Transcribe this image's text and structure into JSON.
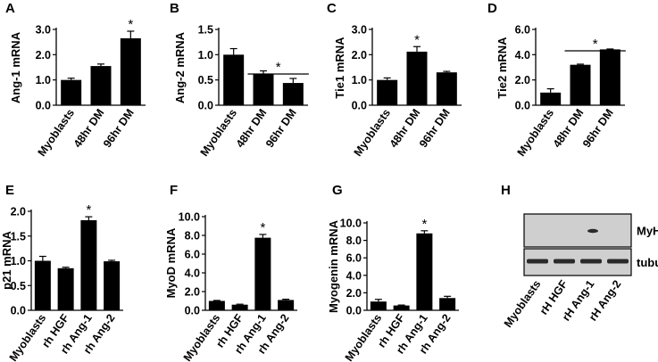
{
  "chart_data": [
    {
      "panel": "A",
      "type": "bar",
      "ylabel": "Ang-1 mRNA",
      "categories": [
        "Myoblasts",
        "48hr DM",
        "96hr DM"
      ],
      "values": [
        1.0,
        1.55,
        2.65
      ],
      "errors": [
        0.07,
        0.08,
        0.28
      ],
      "ylim": [
        0,
        3.0
      ],
      "yticks": [
        0,
        1.0,
        2.0,
        3.0
      ],
      "ytick_labels": [
        "0.0",
        "1.0",
        "2.0",
        "3.0"
      ],
      "significance": [
        {
          "symbol": "*",
          "over": [
            2
          ]
        }
      ]
    },
    {
      "panel": "B",
      "type": "bar",
      "ylabel": "Ang-2 mRNA",
      "categories": [
        "Myoblasts",
        "48hr DM",
        "96hr DM"
      ],
      "values": [
        1.0,
        0.62,
        0.44
      ],
      "errors": [
        0.12,
        0.06,
        0.09
      ],
      "ylim": [
        0,
        1.5
      ],
      "yticks": [
        0,
        0.5,
        1.0,
        1.5
      ],
      "ytick_labels": [
        "0.0",
        "0.5",
        "1.0",
        "1.5"
      ],
      "significance": [
        {
          "symbol": "*",
          "over": [
            1,
            2
          ]
        }
      ]
    },
    {
      "panel": "C",
      "type": "bar",
      "ylabel": "Tie1 mRNA",
      "categories": [
        "Myoblasts",
        "48hr DM",
        "96hr DM"
      ],
      "values": [
        1.0,
        2.12,
        1.3
      ],
      "errors": [
        0.08,
        0.2,
        0.04
      ],
      "ylim": [
        0,
        3.0
      ],
      "yticks": [
        0,
        1.0,
        2.0,
        3.0
      ],
      "ytick_labels": [
        "0.0",
        "1.0",
        "2.0",
        "3.0"
      ],
      "significance": [
        {
          "symbol": "*",
          "over": [
            1
          ]
        }
      ]
    },
    {
      "panel": "D",
      "type": "bar",
      "ylabel": "Tie2 mRNA",
      "categories": [
        "Myoblasts",
        "48hr DM",
        "96hr DM"
      ],
      "values": [
        1.0,
        3.2,
        4.42
      ],
      "errors": [
        0.3,
        0.05,
        0.03
      ],
      "ylim": [
        0,
        6.0
      ],
      "yticks": [
        0,
        2.0,
        4.0,
        6.0
      ],
      "ytick_labels": [
        "0.0",
        "2.0",
        "4.0",
        "6.0"
      ],
      "significance": [
        {
          "symbol": "*",
          "over": [
            1,
            2
          ]
        }
      ]
    },
    {
      "panel": "E",
      "type": "bar",
      "ylabel": "p21 mRNA",
      "categories": [
        "Myoblasts",
        "rh HGF",
        "rh Ang-1",
        "rh Ang-2"
      ],
      "values": [
        1.0,
        0.85,
        1.82,
        0.99
      ],
      "errors": [
        0.09,
        0.02,
        0.07,
        0.02
      ],
      "ylim": [
        0,
        2.0
      ],
      "yticks": [
        0,
        0.5,
        1.0,
        1.5,
        2.0
      ],
      "ytick_labels": [
        "0.0",
        "0.5",
        "1.0",
        "1.5",
        "2.0"
      ],
      "significance": [
        {
          "symbol": "*",
          "over": [
            2
          ]
        }
      ]
    },
    {
      "panel": "F",
      "type": "bar",
      "ylabel": "MyoD mRNA",
      "categories": [
        "Myoblasts",
        "rh HGF",
        "rh Ang-1",
        "rh Ang-2"
      ],
      "values": [
        1.0,
        0.6,
        7.75,
        1.1
      ],
      "errors": [
        0.05,
        0.05,
        0.35,
        0.08
      ],
      "ylim": [
        0,
        10.0
      ],
      "yticks": [
        0,
        2.0,
        4.0,
        6.0,
        8.0,
        10.0
      ],
      "ytick_labels": [
        "0.0",
        "2.0",
        "4.0",
        "6.0",
        "8.0",
        "10.0"
      ],
      "significance": [
        {
          "symbol": "*",
          "over": [
            2
          ]
        }
      ]
    },
    {
      "panel": "G",
      "type": "bar",
      "ylabel": "Myogenin mRNA",
      "categories": [
        "Myoblasts",
        "rh HGF",
        "rh Ang-1",
        "rh Ang-2"
      ],
      "values": [
        1.0,
        0.55,
        8.8,
        1.4
      ],
      "errors": [
        0.25,
        0.05,
        0.3,
        0.2
      ],
      "ylim": [
        0,
        10.0
      ],
      "yticks": [
        0,
        2.0,
        4.0,
        6.0,
        8.0,
        10.0
      ],
      "ytick_labels": [
        "0.0",
        "2.0",
        "4.0",
        "6.0",
        "8.0",
        "10.0"
      ],
      "significance": [
        {
          "symbol": "*",
          "over": [
            2
          ]
        }
      ]
    }
  ],
  "western_blot": {
    "panel": "H",
    "bands": [
      {
        "label": "MyHC",
        "intensity": [
          0,
          0,
          1,
          0
        ]
      },
      {
        "label": "tubulin",
        "intensity": [
          1,
          1,
          1,
          1
        ]
      }
    ],
    "lanes": [
      "Myoblasts",
      "rH HGF",
      "rH Ang-1",
      "rH Ang-2"
    ]
  },
  "colors": {
    "bar": "#000000",
    "axis": "#000000",
    "blot_bg": "#cfcfcf",
    "band": "#2a2a2a"
  }
}
